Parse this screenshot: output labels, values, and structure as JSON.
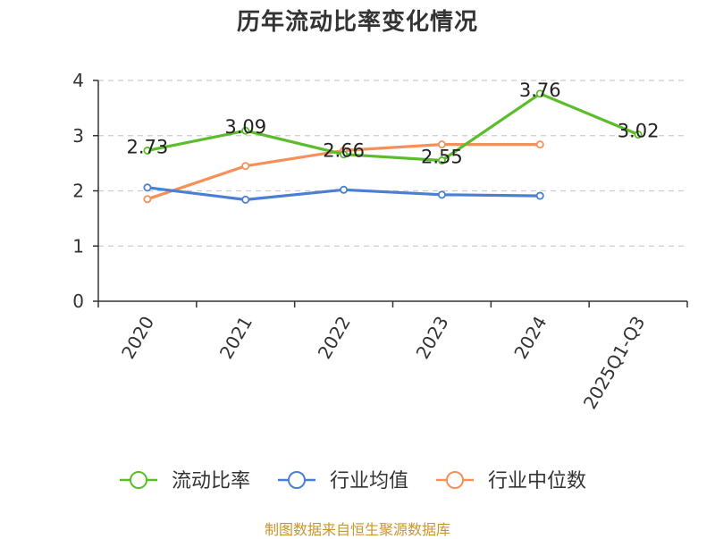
{
  "title": "历年流动比率变化情况",
  "source": "制图数据来自恒生聚源数据库",
  "colors": {
    "axis": "#333333",
    "grid": "#cccccc"
  },
  "chart_data": {
    "type": "line",
    "categories": [
      "2020",
      "2021",
      "2022",
      "2023",
      "2024",
      "2025Q1-Q3"
    ],
    "ylim": [
      0,
      4
    ],
    "yticks": [
      0,
      1,
      2,
      3,
      4
    ],
    "grid": "horizontal-dashed",
    "legend_position": "bottom-center",
    "series": [
      {
        "name": "流动比率",
        "color": "#5bbd2a",
        "values": [
          2.73,
          3.09,
          2.66,
          2.55,
          3.76,
          3.02
        ],
        "data_labels": [
          "2.73",
          "3.09",
          "2.66",
          "2.55",
          "3.76",
          "3.02"
        ]
      },
      {
        "name": "行业均值",
        "color": "#4a7fd4",
        "values": [
          2.06,
          1.84,
          2.02,
          1.93,
          1.91,
          null
        ]
      },
      {
        "name": "行业中位数",
        "color": "#f5905a",
        "values": [
          1.85,
          2.45,
          2.73,
          2.84,
          2.84,
          null
        ]
      }
    ]
  }
}
